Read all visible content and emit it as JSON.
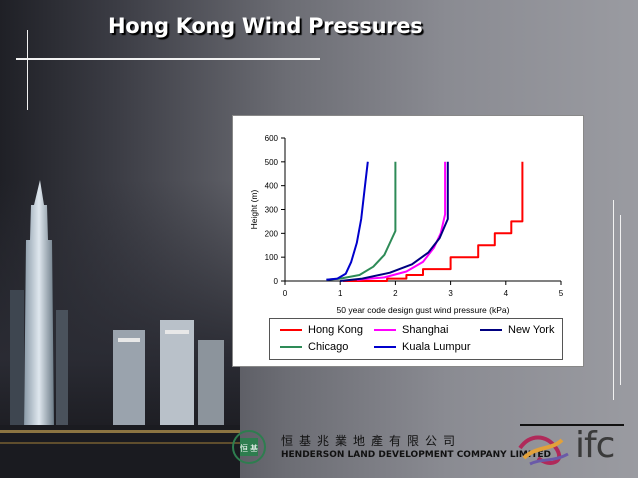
{
  "slide": {
    "title": "Hong Kong Wind Pressures",
    "company_chinese": "恒基兆業地產有限公司",
    "company_english": "HENDERSON LAND DEVELOPMENT COMPANY LIMITED",
    "ifc_label": "ifc",
    "logo_chars": [
      "恒",
      "基"
    ]
  },
  "chart_data": {
    "type": "line",
    "title": "",
    "xlabel": "50 year code design gust wind pressure (kPa)",
    "ylabel": "Height (m)",
    "xlim": [
      0,
      5
    ],
    "ylim": [
      0,
      600
    ],
    "xticks": [
      0,
      1,
      2,
      3,
      4,
      5
    ],
    "yticks": [
      0,
      100,
      200,
      300,
      400,
      500,
      600
    ],
    "grid": false,
    "legend_position": "bottom",
    "series": [
      {
        "name": "Hong Kong",
        "color": "#ff0000",
        "step": true,
        "points": [
          [
            1.05,
            0
          ],
          [
            1.85,
            0
          ],
          [
            1.85,
            10
          ],
          [
            2.2,
            10
          ],
          [
            2.2,
            25
          ],
          [
            2.5,
            25
          ],
          [
            2.5,
            50
          ],
          [
            3.0,
            50
          ],
          [
            3.0,
            100
          ],
          [
            3.5,
            100
          ],
          [
            3.5,
            150
          ],
          [
            3.8,
            150
          ],
          [
            3.8,
            200
          ],
          [
            4.1,
            200
          ],
          [
            4.1,
            250
          ],
          [
            4.3,
            250
          ],
          [
            4.3,
            500
          ]
        ]
      },
      {
        "name": "Shanghai",
        "color": "#ff00ff",
        "points": [
          [
            1.3,
            5
          ],
          [
            1.8,
            15
          ],
          [
            2.2,
            40
          ],
          [
            2.5,
            80
          ],
          [
            2.7,
            140
          ],
          [
            2.82,
            200
          ],
          [
            2.9,
            280
          ],
          [
            2.9,
            500
          ]
        ]
      },
      {
        "name": "New York",
        "color": "#000080",
        "points": [
          [
            1.0,
            0
          ],
          [
            1.4,
            10
          ],
          [
            1.9,
            35
          ],
          [
            2.3,
            70
          ],
          [
            2.6,
            120
          ],
          [
            2.8,
            180
          ],
          [
            2.95,
            260
          ],
          [
            2.95,
            500
          ]
        ]
      },
      {
        "name": "Chicago",
        "color": "#2e8b57",
        "points": [
          [
            0.75,
            5
          ],
          [
            1.0,
            10
          ],
          [
            1.35,
            25
          ],
          [
            1.6,
            60
          ],
          [
            1.8,
            110
          ],
          [
            1.92,
            170
          ],
          [
            2.0,
            210
          ],
          [
            2.0,
            500
          ]
        ]
      },
      {
        "name": "Kuala Lumpur",
        "color": "#0000cc",
        "points": [
          [
            0.75,
            5
          ],
          [
            0.95,
            10
          ],
          [
            1.1,
            30
          ],
          [
            1.2,
            80
          ],
          [
            1.3,
            160
          ],
          [
            1.38,
            260
          ],
          [
            1.45,
            400
          ],
          [
            1.5,
            500
          ]
        ]
      }
    ]
  }
}
